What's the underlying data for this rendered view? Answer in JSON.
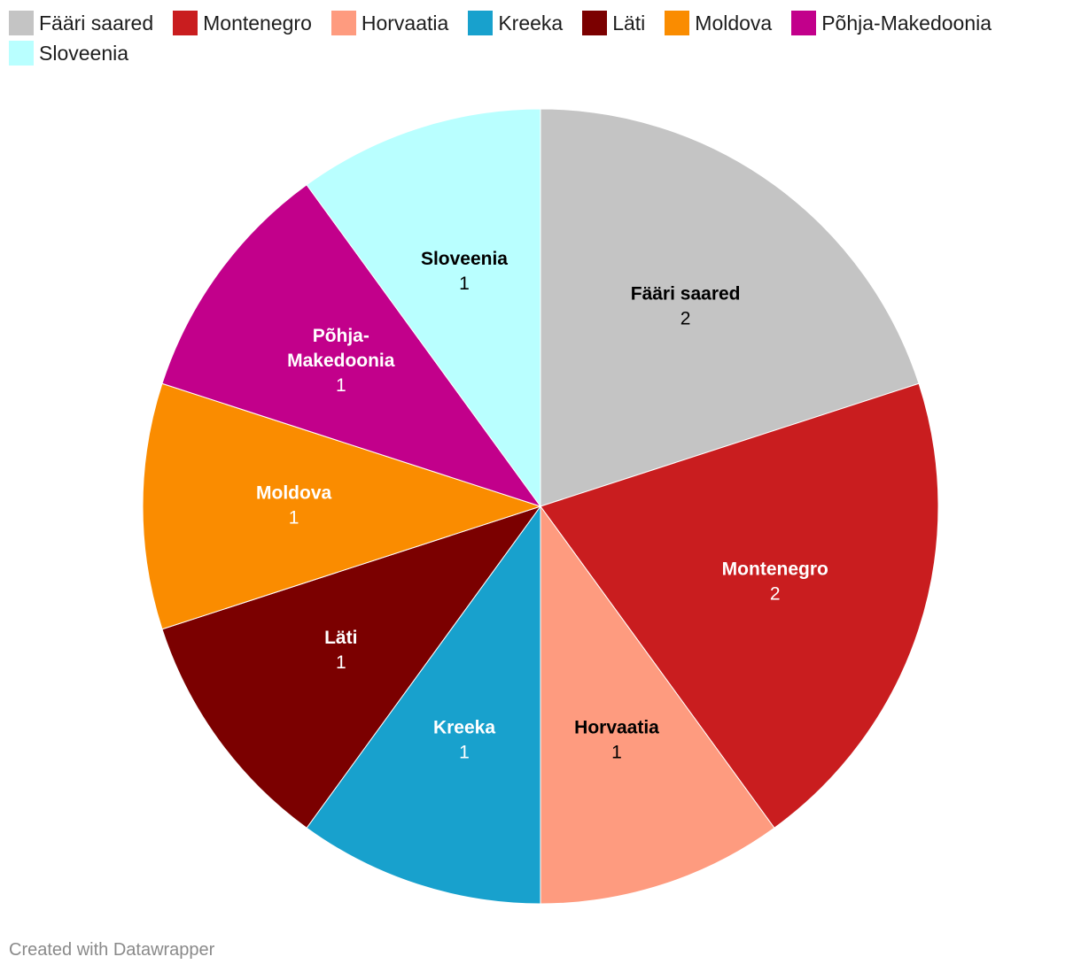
{
  "chart_data": {
    "type": "pie",
    "categories": [
      "Fääri saared",
      "Montenegro",
      "Horvaatia",
      "Kreeka",
      "Läti",
      "Moldova",
      "Põhja-Makedoonia",
      "Sloveenia"
    ],
    "values": [
      2,
      2,
      1,
      1,
      1,
      1,
      1,
      1
    ],
    "colors": [
      "#c4c4c4",
      "#c91d1f",
      "#fe9b7f",
      "#18a1cd",
      "#7b0000",
      "#fa8c00",
      "#c2008b",
      "#b9ffff"
    ],
    "label_colors": [
      "#000000",
      "#ffffff",
      "#000000",
      "#ffffff",
      "#ffffff",
      "#ffffff",
      "#ffffff",
      "#000000"
    ],
    "display_labels": [
      [
        "Fääri saared"
      ],
      [
        "Montenegro"
      ],
      [
        "Horvaatia"
      ],
      [
        "Kreeka"
      ],
      [
        "Läti"
      ],
      [
        "Moldova"
      ],
      [
        "Põhja-",
        "Makedoonia"
      ],
      [
        "Sloveenia"
      ]
    ],
    "legend_placement": "top-left",
    "start_angle": "12 o'clock",
    "direction": "clockwise"
  },
  "footer": {
    "credit": "Created with Datawrapper"
  }
}
